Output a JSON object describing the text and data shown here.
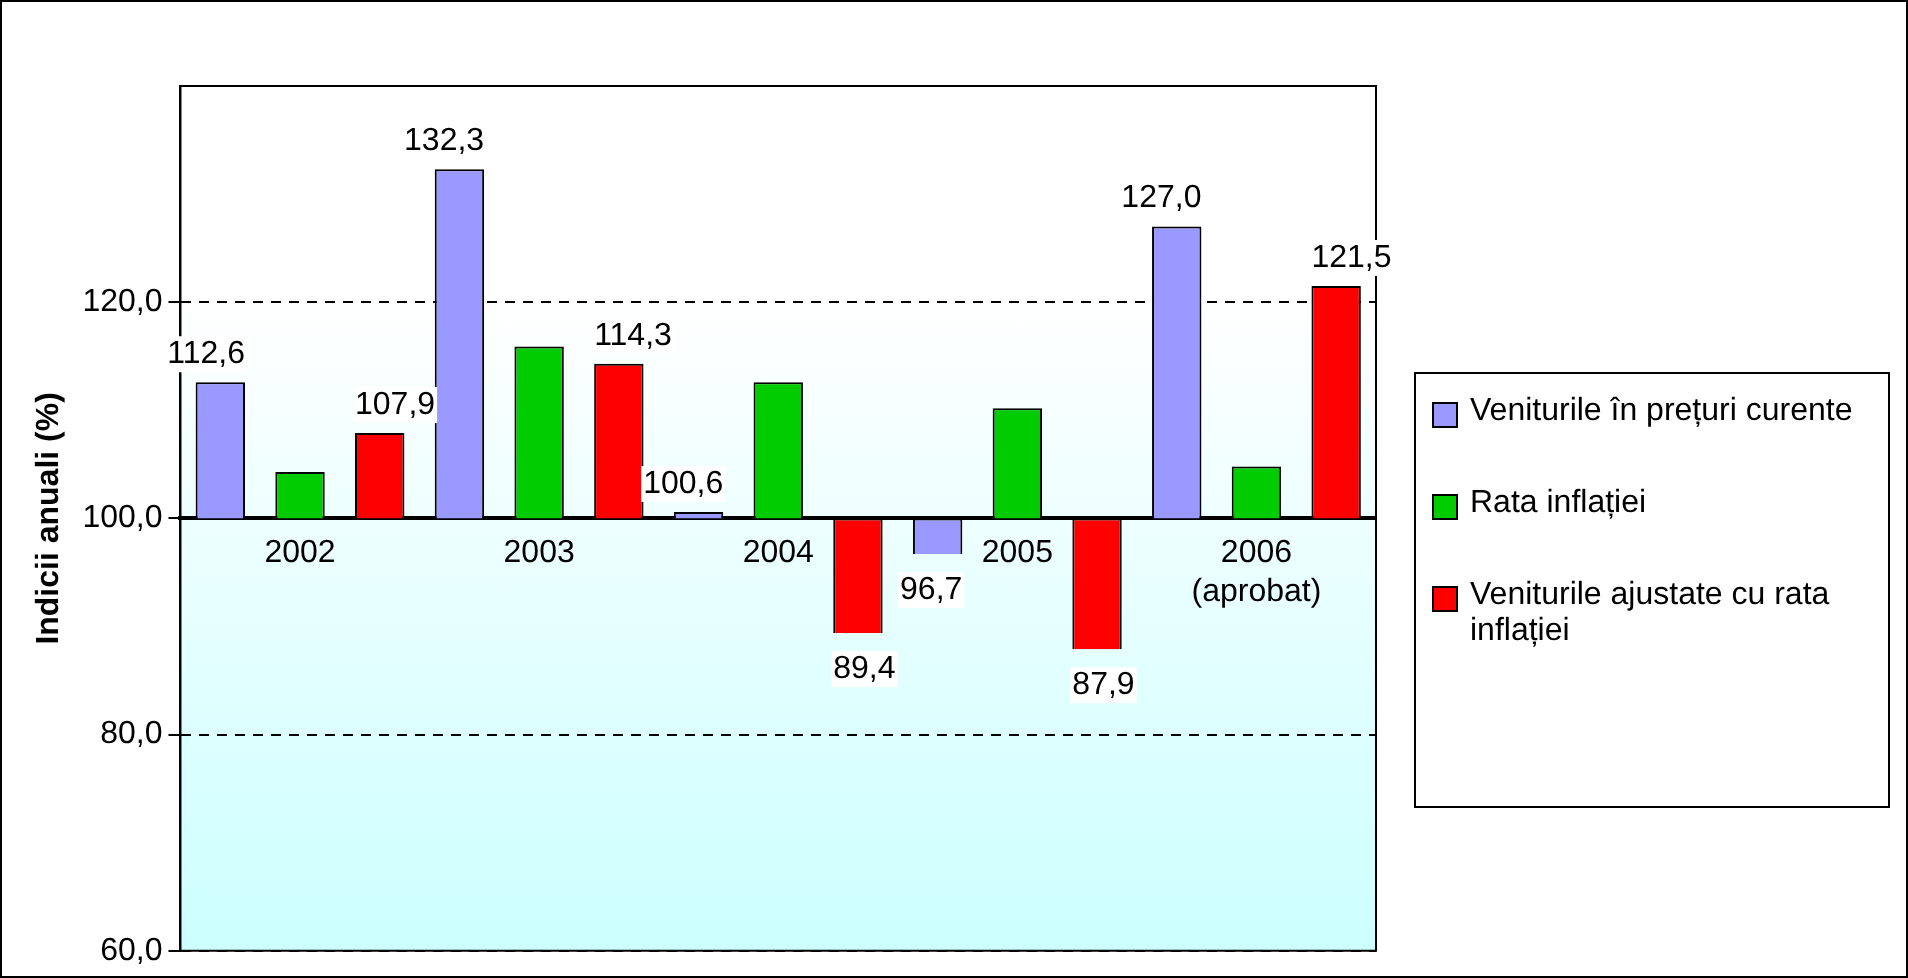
{
  "chart_data": {
    "type": "bar",
    "ylabel": "Indicii anuali (%)",
    "categories": [
      "2002",
      "2003",
      "2004",
      "2005",
      "2006\n(aprobat)"
    ],
    "series": [
      {
        "name": "Veniturile în prețuri curente",
        "color": "#9999ff",
        "base": [
          100,
          100,
          100,
          100,
          100
        ],
        "values": [
          12.6,
          32.3,
          0.6,
          -3.3,
          27.0
        ],
        "value_labels": [
          "112,6",
          "132,3",
          "100,6",
          "96,7",
          "127,0"
        ]
      },
      {
        "name": "Rata inflației",
        "color": "#00cc00",
        "base": [
          100,
          100,
          100,
          100,
          100
        ],
        "values": [
          4.3,
          15.9,
          12.6,
          10.2,
          4.8
        ]
      },
      {
        "name": "Veniturile ajustate cu rata inflației",
        "color": "#ff0000",
        "base": [
          100,
          100,
          100,
          100,
          100
        ],
        "values": [
          7.9,
          14.3,
          -10.6,
          -12.1,
          21.5
        ],
        "value_labels": [
          "107,9",
          "114,3",
          "89,4",
          "87,9",
          "121,5"
        ]
      }
    ],
    "ylim": [
      60,
      140
    ],
    "yticks": [
      {
        "value": 60,
        "label": "60,0"
      },
      {
        "value": 80,
        "label": "80,0"
      },
      {
        "value": 100,
        "label": "100,0"
      },
      {
        "value": 120,
        "label": "120,0"
      }
    ],
    "grid": "y",
    "legend": "right"
  }
}
